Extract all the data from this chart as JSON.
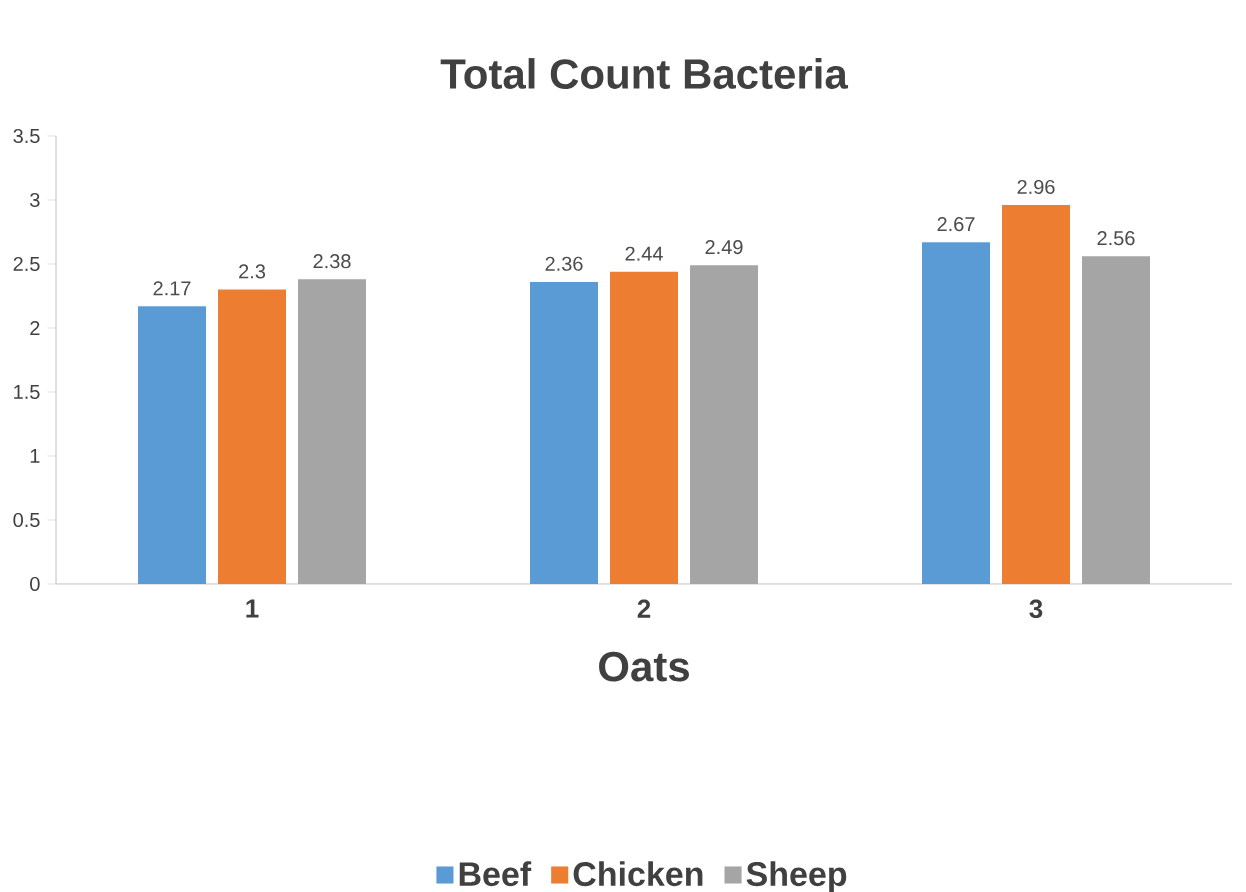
{
  "chart_data": {
    "type": "bar",
    "title": "Total Count Bacteria",
    "xlabel": "Oats",
    "categories": [
      "1",
      "2",
      "3"
    ],
    "series": [
      {
        "name": "Beef",
        "color": "#5b9bd5",
        "values": [
          2.17,
          2.36,
          2.67
        ]
      },
      {
        "name": "Chicken",
        "color": "#ed7d31",
        "values": [
          2.3,
          2.44,
          2.96
        ]
      },
      {
        "name": "Sheep",
        "color": "#a5a5a5",
        "values": [
          2.38,
          2.49,
          2.56
        ]
      }
    ],
    "ylim": [
      0,
      3.5
    ],
    "yticks": [
      0,
      0.5,
      1,
      1.5,
      2,
      2.5,
      3,
      3.5
    ],
    "data_labels": true,
    "grid": false,
    "legend": "bottom"
  }
}
